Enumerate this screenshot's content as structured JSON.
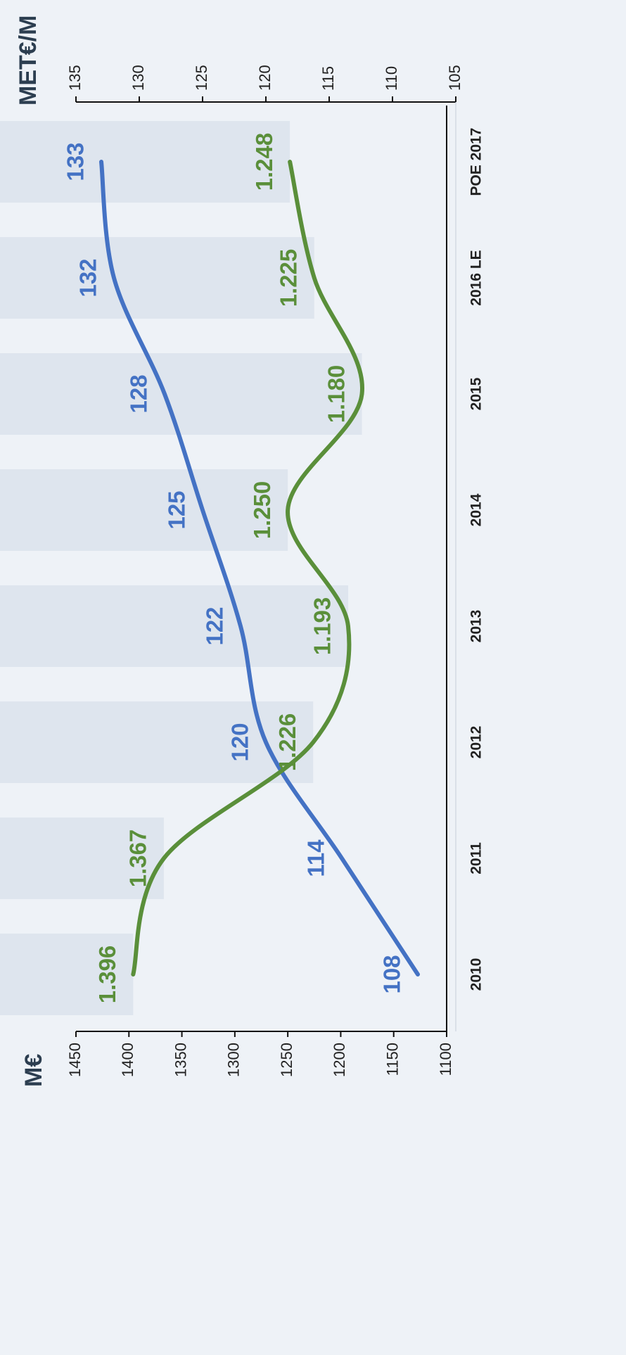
{
  "chart_data": {
    "type": "line",
    "orientation": "rotated 90° clockwise",
    "categories": [
      "2010",
      "2011",
      "2012",
      "2013",
      "2014",
      "2015",
      "2016 LE",
      "POE 2017"
    ],
    "left_axis": {
      "unit_label": "M€",
      "ticks": [
        1100,
        1150,
        1200,
        1250,
        1300,
        1350,
        1400,
        1450
      ],
      "range": [
        1100,
        1450
      ]
    },
    "right_axis": {
      "unit_label": "MET€/M",
      "ticks": [
        105,
        110,
        115,
        120,
        125,
        130,
        135
      ],
      "range": [
        105,
        135
      ]
    },
    "series": [
      {
        "axis": "right",
        "color": "#4472c4",
        "values": [
          108,
          114,
          120,
          122,
          125,
          128,
          132,
          133
        ],
        "labels": [
          "108",
          "114",
          "120",
          "122",
          "125",
          "128",
          "132",
          "133"
        ]
      },
      {
        "axis": "left",
        "color": "#5a8f3a",
        "values": [
          1396,
          1367,
          1226,
          1193,
          1250,
          1180,
          1225,
          1248
        ],
        "labels": [
          "1.396",
          "1.367",
          "1.226",
          "1.193",
          "1.250",
          "1.180",
          "1.225",
          "1.248"
        ]
      }
    ],
    "background_bars": {
      "color": "#d3dce8",
      "axis": "left"
    },
    "grid": false,
    "legend": "none"
  }
}
